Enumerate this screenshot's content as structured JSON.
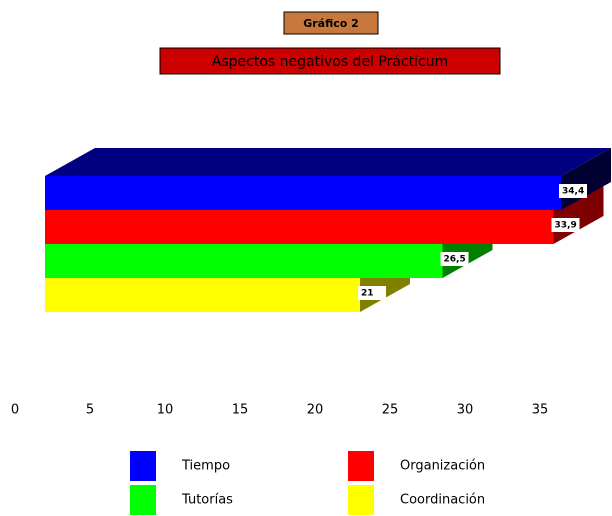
{
  "chart_data": {
    "type": "bar3d_horizontal",
    "title": "Gráfico 2",
    "subtitle": "Aspectos negativos del Prácticum",
    "series": [
      {
        "name": "Tiempo",
        "color": "#0000ff",
        "values": [
          34.4
        ],
        "value_labels": [
          "34,4"
        ]
      },
      {
        "name": "Organización",
        "color": "#ff0000",
        "values": [
          33.9
        ],
        "value_labels": [
          "33,9"
        ]
      },
      {
        "name": "Tutorías",
        "color": "#00ff00",
        "values": [
          26.5
        ],
        "value_labels": [
          "26,5"
        ]
      },
      {
        "name": "Coordinación",
        "color": "#ffff00",
        "values": [
          21
        ],
        "value_labels": [
          "21"
        ]
      }
    ],
    "xlim": [
      0,
      35
    ],
    "xticks": [
      0,
      5,
      10,
      15,
      20,
      25,
      30,
      35
    ]
  }
}
